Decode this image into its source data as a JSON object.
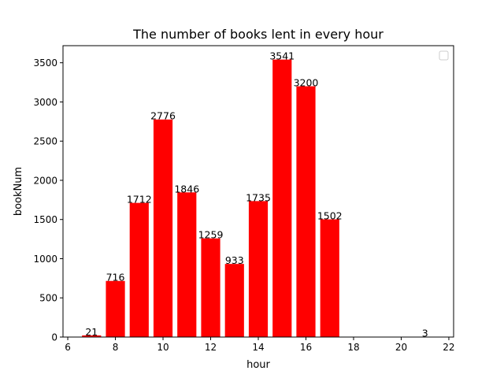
{
  "chart_data": {
    "type": "bar",
    "title": "The number of books lent in every hour",
    "xlabel": "hour",
    "ylabel": "bookNum",
    "x": [
      7,
      8,
      9,
      10,
      11,
      12,
      13,
      14,
      15,
      16,
      17,
      21
    ],
    "values": [
      21,
      716,
      1712,
      2776,
      1846,
      1259,
      933,
      1735,
      3541,
      3200,
      1502,
      3
    ],
    "xlim": [
      5.8,
      22.2
    ],
    "ylim": [
      0,
      3718
    ],
    "xticks": [
      6,
      8,
      10,
      12,
      14,
      16,
      18,
      20,
      22
    ],
    "yticks": [
      0,
      500,
      1000,
      1500,
      2000,
      2500,
      3000,
      3500
    ],
    "bar_color": "#ff0000",
    "grid": false,
    "legend": "top-right",
    "legend_entries": []
  }
}
